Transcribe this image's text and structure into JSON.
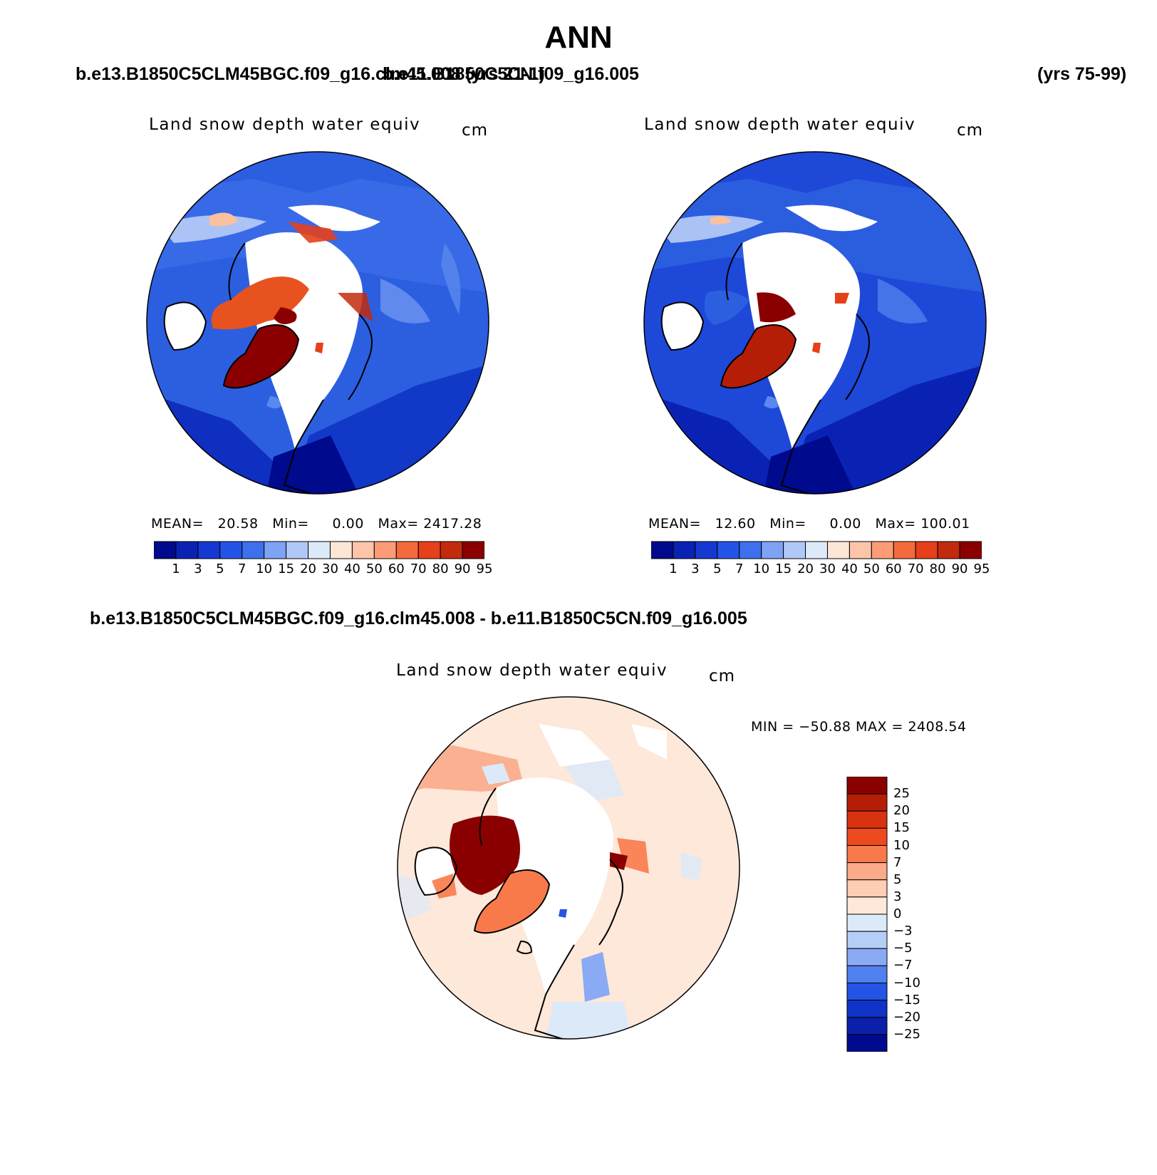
{
  "page": {
    "title": "ANN",
    "case_left": "b.e13.B1850C5CLM45BGC.f09_g16.clm45.008 (yrs 21-1)",
    "case_right": "b.e11.B1850C5CN.f09_g16.005",
    "years_right": "(yrs 75-99)",
    "diff_title": "b.e13.B1850C5CLM45BGC.f09_g16.clm45.008 - b.e11.B1850C5CN.f09_g16.005"
  },
  "panels": {
    "left": {
      "title": "Land snow depth water equiv",
      "units": "cm",
      "mean_label": "MEAN=",
      "mean": "20.58",
      "min_label": "Min=",
      "min": "0.00",
      "max_label": "Max=",
      "max": "2417.28"
    },
    "right": {
      "title": "Land snow depth water equiv",
      "units": "cm",
      "mean_label": "MEAN=",
      "mean": "12.60",
      "min_label": "Min=",
      "min": "0.00",
      "max_label": "Max=",
      "max": "100.01"
    },
    "diff": {
      "title": "Land snow depth water equiv",
      "units": "cm",
      "minmax": "MIN = −50.88   MAX = 2408.54"
    }
  },
  "colorbar_abs": {
    "labels": [
      "1",
      "3",
      "5",
      "7",
      "10",
      "15",
      "20",
      "30",
      "40",
      "50",
      "60",
      "70",
      "80",
      "90",
      "95"
    ],
    "colors": [
      "#000a8c",
      "#0a22b4",
      "#1638d2",
      "#2454e6",
      "#3e70ee",
      "#7ea2f4",
      "#b0c8f6",
      "#dce9f8",
      "#fde6d6",
      "#fdc4aa",
      "#fb9c76",
      "#f56a3c",
      "#e6401a",
      "#c22a0c",
      "#8a0000"
    ]
  },
  "colorbar_diff": {
    "labels": [
      "25",
      "20",
      "15",
      "10",
      "7",
      "5",
      "3",
      "0",
      "−3",
      "−5",
      "−7",
      "−10",
      "−15",
      "−20",
      "−25"
    ],
    "colors": [
      "#8a0000",
      "#b41e06",
      "#d83210",
      "#ee4a20",
      "#f87a4a",
      "#fbaa8a",
      "#fdcdb4",
      "#fde8da",
      "#dce9f8",
      "#b4cef6",
      "#8aaaf4",
      "#5080ee",
      "#2454e6",
      "#1034c8",
      "#0a20a8",
      "#000a8c"
    ]
  }
}
